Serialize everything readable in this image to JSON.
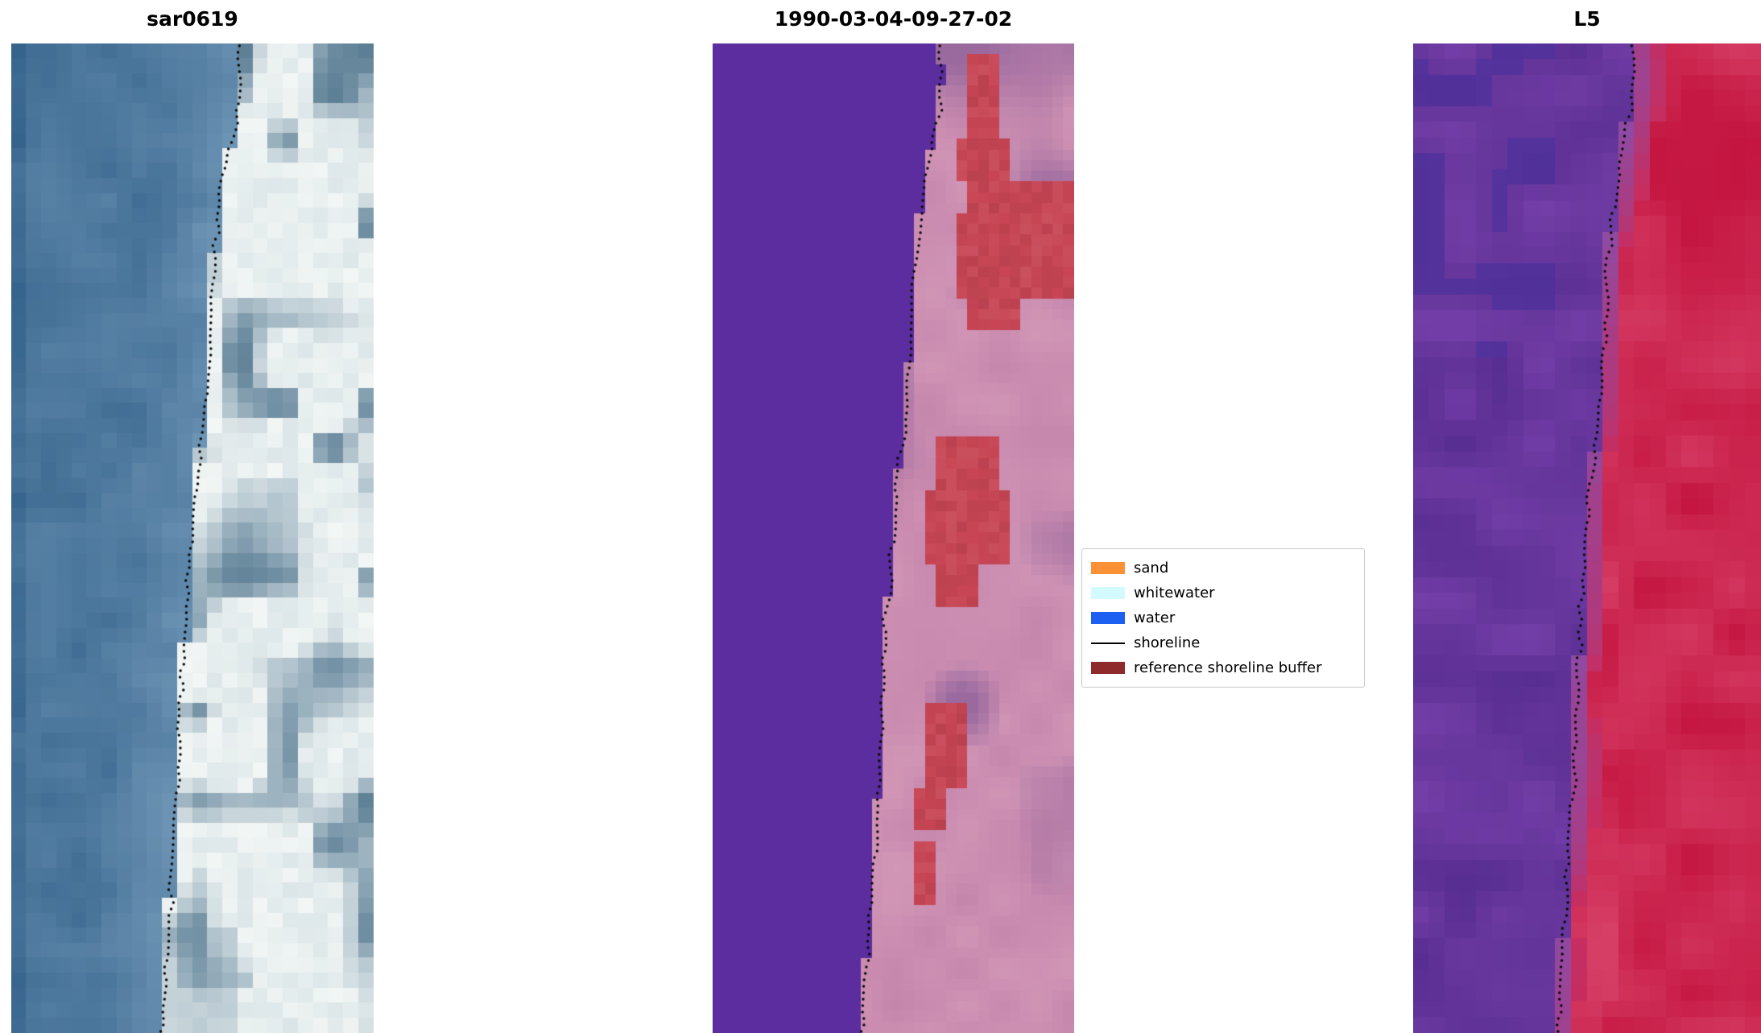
{
  "figure": {
    "background": "#ffffff"
  },
  "panels": [
    {
      "title": "sar0619",
      "type": "sar",
      "seed": 3,
      "colors": {
        "water_dark": "#2e5c86",
        "water_light": "#6f96b6",
        "land": "#dce6e8",
        "land_light": "#f2f6f5",
        "patch": "#7e9aac",
        "patch_dark": "#54788f"
      }
    },
    {
      "title": "1990-03-04-09-27-02",
      "type": "class",
      "seed": 7,
      "colors": {
        "water": "#5b2d9e",
        "land": "#c586ac",
        "land_dark": "#91639b",
        "land_light": "#d69cba",
        "buffer": "#c74554"
      },
      "buffer_rects": [
        [
          0.015,
          0.1,
          0.695,
          0.79
        ],
        [
          0.1,
          0.135,
          0.67,
          0.83
        ],
        [
          0.135,
          0.175,
          0.7,
          1.0
        ],
        [
          0.175,
          0.255,
          0.685,
          1.0
        ],
        [
          0.255,
          0.285,
          0.7,
          0.86
        ],
        [
          0.4,
          0.455,
          0.615,
          0.78
        ],
        [
          0.455,
          0.53,
          0.6,
          0.815
        ],
        [
          0.53,
          0.565,
          0.615,
          0.74
        ],
        [
          0.665,
          0.75,
          0.575,
          0.705
        ],
        [
          0.75,
          0.8,
          0.565,
          0.66
        ],
        [
          0.81,
          0.87,
          0.555,
          0.63
        ]
      ]
    },
    {
      "title": "L5",
      "type": "l5",
      "seed": 11,
      "colors": {
        "water_dark": "#522a8c",
        "water_light": "#7a42ad",
        "water_blue": "#45309e",
        "trans": "#b55a92",
        "land_dark": "#c00d38",
        "land": "#d31340",
        "land_light": "#e0557b"
      }
    }
  ],
  "legend": {
    "items": [
      {
        "label": "sand",
        "color": "#fb9136",
        "type": "patch"
      },
      {
        "label": "whitewater",
        "color": "#d3fbff",
        "type": "patch"
      },
      {
        "label": "water",
        "color": "#1b60f0",
        "type": "patch"
      },
      {
        "label": "shoreline",
        "color": "#000000",
        "type": "line"
      },
      {
        "label": "reference shoreline buffer",
        "color": "#8e2a2b",
        "type": "patch"
      }
    ]
  },
  "chart_data": {
    "type": "heatmap",
    "title": "",
    "subplots": [
      {
        "title": "sar0619"
      },
      {
        "title": "1990-03-04-09-27-02"
      },
      {
        "title": "L5"
      }
    ],
    "legend_entries": [
      "sand",
      "whitewater",
      "water",
      "shoreline",
      "reference shoreline buffer"
    ],
    "shoreline_path": [
      [
        0.0,
        0.627
      ],
      [
        0.03,
        0.636
      ],
      [
        0.06,
        0.63
      ],
      [
        0.1,
        0.606
      ],
      [
        0.14,
        0.585
      ],
      [
        0.18,
        0.571
      ],
      [
        0.22,
        0.562
      ],
      [
        0.26,
        0.556
      ],
      [
        0.3,
        0.549
      ],
      [
        0.34,
        0.541
      ],
      [
        0.38,
        0.531
      ],
      [
        0.42,
        0.519
      ],
      [
        0.46,
        0.507
      ],
      [
        0.5,
        0.497
      ],
      [
        0.54,
        0.489
      ],
      [
        0.58,
        0.482
      ],
      [
        0.62,
        0.476
      ],
      [
        0.66,
        0.47
      ],
      [
        0.7,
        0.465
      ],
      [
        0.74,
        0.46
      ],
      [
        0.78,
        0.453
      ],
      [
        0.82,
        0.446
      ],
      [
        0.86,
        0.439
      ],
      [
        0.9,
        0.432
      ],
      [
        0.94,
        0.424
      ],
      [
        1.0,
        0.414
      ]
    ]
  }
}
